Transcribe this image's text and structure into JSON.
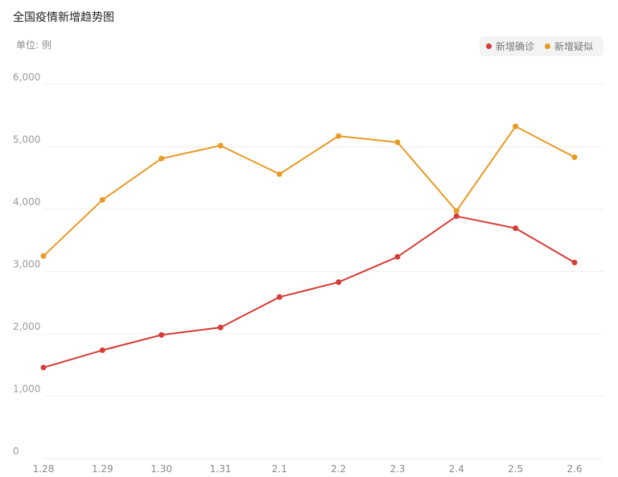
{
  "title": "全国疫情新增趋势图",
  "unit_label": "单位: 例",
  "chart_data": {
    "type": "line",
    "title": "全国疫情新增趋势图",
    "ylabel": "单位: 例",
    "xlabel": "",
    "categories": [
      "1.28",
      "1.29",
      "1.30",
      "1.31",
      "2.1",
      "2.2",
      "2.3",
      "2.4",
      "2.5",
      "2.6"
    ],
    "ylim": [
      0,
      6000
    ],
    "yticks": [
      0,
      1000,
      2000,
      3000,
      4000,
      5000,
      6000
    ],
    "ytick_labels": [
      "0",
      "1,000",
      "2,000",
      "3,000",
      "4,000",
      "5,000",
      "6,000"
    ],
    "grid": true,
    "legend_position": "top-right",
    "series": [
      {
        "name": "新增确诊",
        "color": "#d63b36",
        "values": [
          1459,
          1737,
          1982,
          2102,
          2590,
          2829,
          3235,
          3887,
          3694,
          3143
        ]
      },
      {
        "name": "新增疑似",
        "color": "#e89a24",
        "values": [
          3248,
          4148,
          4812,
          5019,
          4562,
          5173,
          5072,
          3971,
          5328,
          4833
        ]
      }
    ]
  }
}
